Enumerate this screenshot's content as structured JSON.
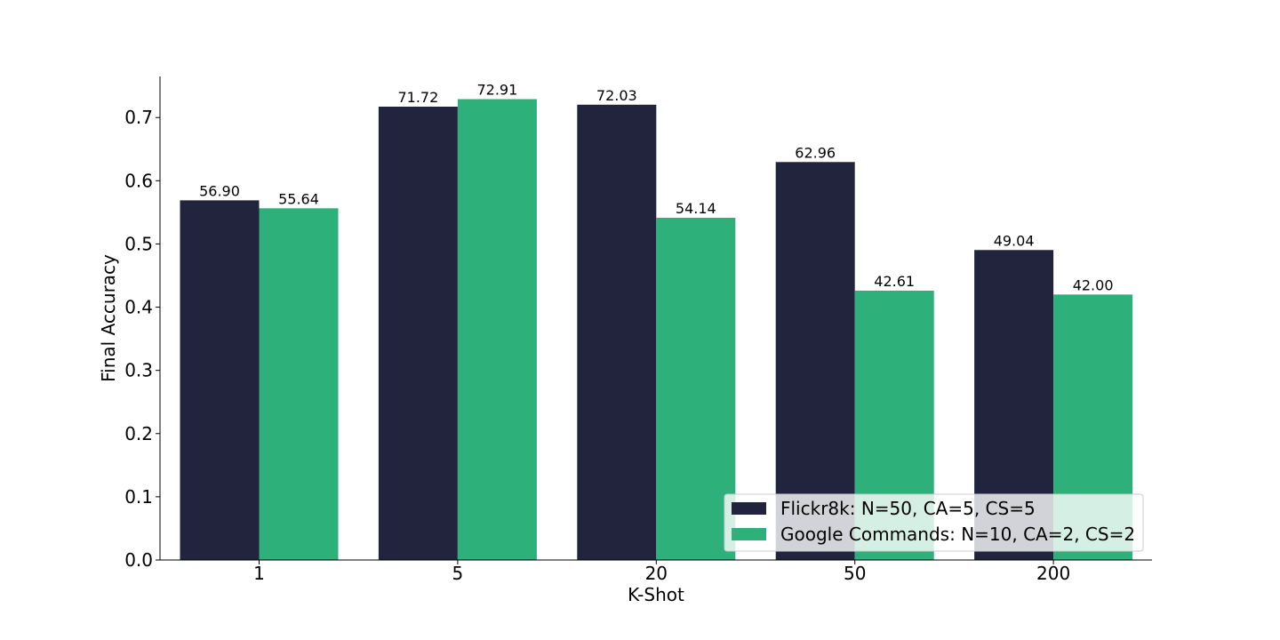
{
  "chart_data": {
    "type": "bar",
    "xlabel": "K-Shot",
    "ylabel": "Final Accuracy",
    "categories": [
      "1",
      "5",
      "20",
      "50",
      "200"
    ],
    "ylim": [
      0,
      0.765
    ],
    "yticks": [
      "0.0",
      "0.1",
      "0.2",
      "0.3",
      "0.4",
      "0.5",
      "0.6",
      "0.7"
    ],
    "legend_position": "lower-right",
    "grid": false,
    "series": [
      {
        "name": "Flickr8k: N=50, CA=5, CS=5",
        "color": "#22243e",
        "values": [
          0.569,
          0.7172,
          0.7203,
          0.6296,
          0.4904
        ],
        "labels": [
          "56.90",
          "71.72",
          "72.03",
          "62.96",
          "49.04"
        ]
      },
      {
        "name": "Google Commands: N=10, CA=2, CS=2",
        "color": "#2db07a",
        "values": [
          0.5564,
          0.7291,
          0.5414,
          0.4261,
          0.42
        ],
        "labels": [
          "55.64",
          "72.91",
          "54.14",
          "42.61",
          "42.00"
        ]
      }
    ]
  }
}
